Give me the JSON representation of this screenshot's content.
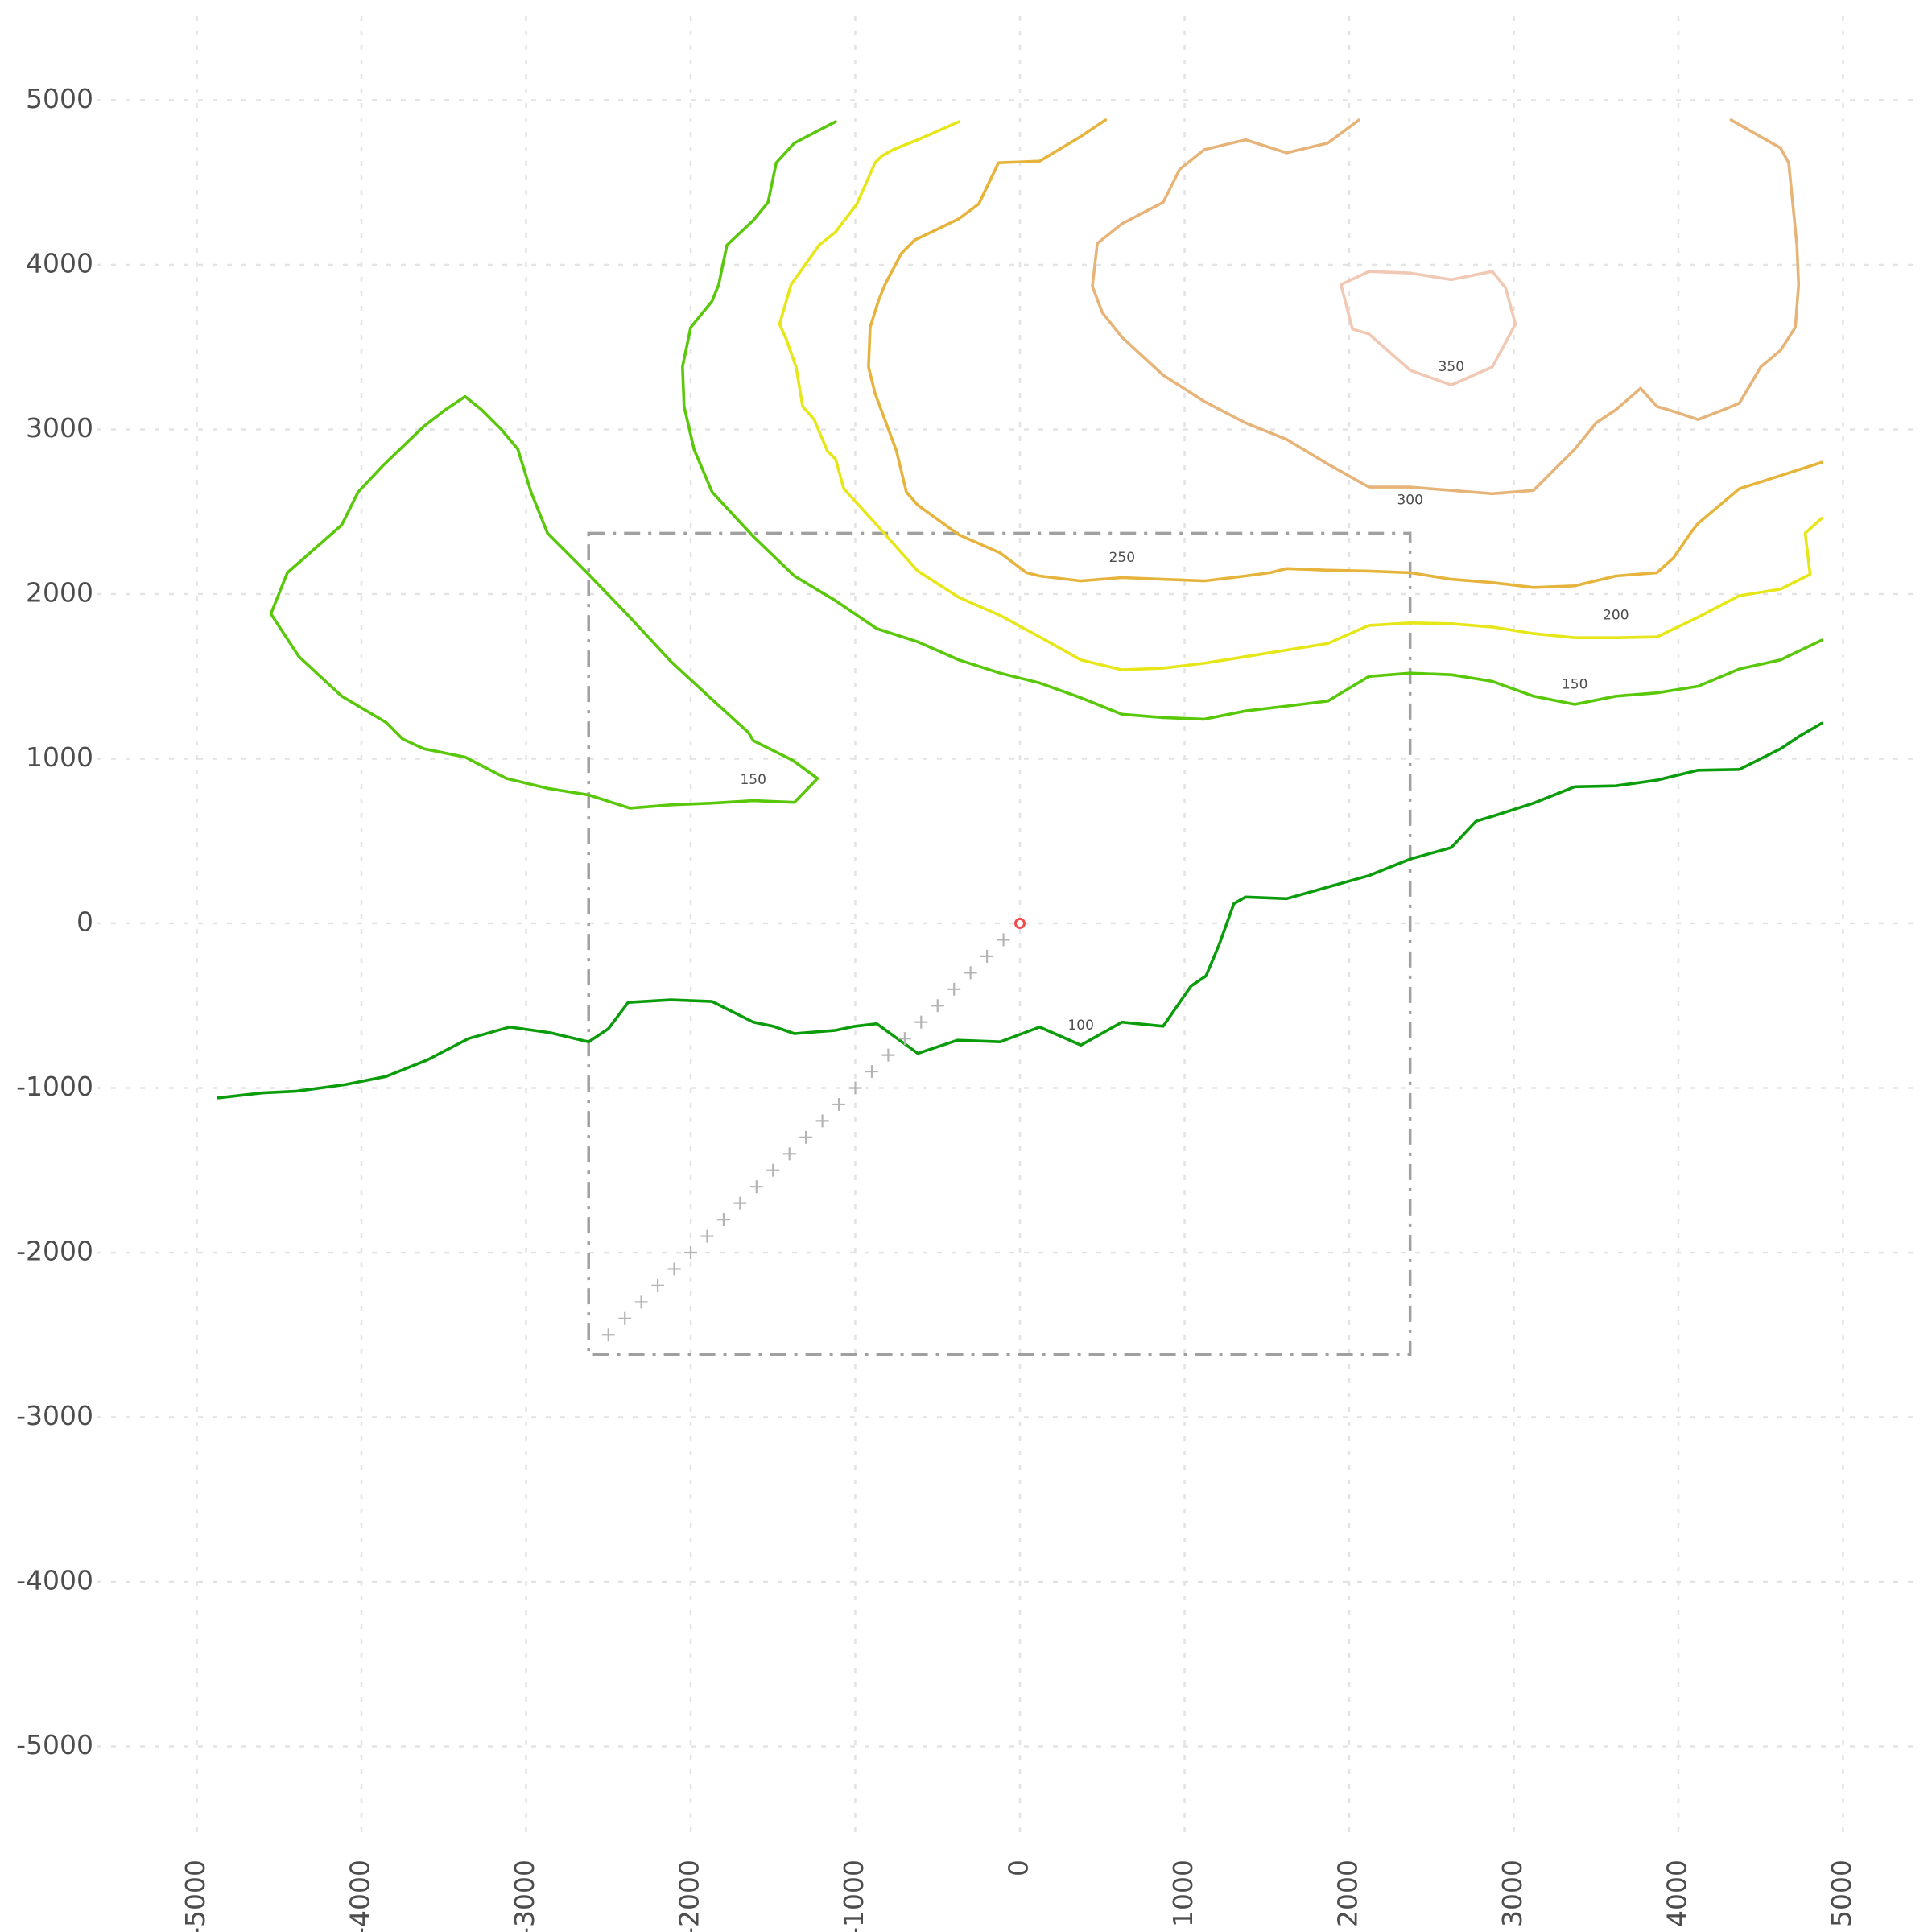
{
  "chart_data": {
    "type": "contour",
    "title": "",
    "xlabel": "",
    "ylabel": "",
    "xlim": [
      -5500,
      5500
    ],
    "ylim": [
      -5600,
      5600
    ],
    "grid": true,
    "x_ticks": [
      -5000,
      -4000,
      -3000,
      -2000,
      -1000,
      0,
      1000,
      2000,
      3000,
      4000,
      5000
    ],
    "x_tick_labels": [
      "-5000",
      "-4000",
      "-3000",
      "-2000",
      "-1000",
      "0",
      "1000",
      "2000",
      "3000",
      "4000",
      "5000"
    ],
    "y_ticks": [
      5000,
      4000,
      3000,
      2000,
      1000,
      0,
      -1000,
      -2000,
      -3000,
      -4000,
      -5000
    ],
    "y_tick_labels": [
      "5000",
      "4000",
      "3000",
      "2000",
      "1000",
      "0",
      "-1000",
      "-2000",
      "-3000",
      "-4000",
      "-5000"
    ],
    "contours": [
      {
        "level": 100,
        "color": "#0a9c0a",
        "points": [
          [
            -4870,
            -1060
          ],
          [
            -4600,
            -1030
          ],
          [
            -4400,
            -1020
          ],
          [
            -4100,
            -980
          ],
          [
            -3850,
            -930
          ],
          [
            -3600,
            -830
          ],
          [
            -3350,
            -700
          ],
          [
            -3100,
            -630
          ],
          [
            -2850,
            -665
          ],
          [
            -2620,
            -720
          ],
          [
            -2500,
            -640
          ],
          [
            -2380,
            -480
          ],
          [
            -2120,
            -465
          ],
          [
            -1870,
            -475
          ],
          [
            -1620,
            -600
          ],
          [
            -1500,
            -625
          ],
          [
            -1370,
            -670
          ],
          [
            -1120,
            -650
          ],
          [
            -1000,
            -625
          ],
          [
            -870,
            -610
          ],
          [
            -620,
            -790
          ],
          [
            -380,
            -710
          ],
          [
            -120,
            -720
          ],
          [
            120,
            -630
          ],
          [
            370,
            -740
          ],
          [
            620,
            -600
          ],
          [
            870,
            -625
          ],
          [
            1040,
            -380
          ],
          [
            1130,
            -320
          ],
          [
            1210,
            -130
          ],
          [
            1300,
            120
          ],
          [
            1370,
            160
          ],
          [
            1620,
            150
          ],
          [
            1870,
            220
          ],
          [
            2120,
            290
          ],
          [
            2370,
            390
          ],
          [
            2620,
            460
          ],
          [
            2770,
            620
          ],
          [
            2870,
            650
          ],
          [
            3120,
            730
          ],
          [
            3370,
            830
          ],
          [
            3620,
            835
          ],
          [
            3870,
            870
          ],
          [
            4120,
            930
          ],
          [
            4370,
            935
          ],
          [
            4620,
            1060
          ],
          [
            4740,
            1140
          ],
          [
            4870,
            1215
          ]
        ]
      },
      {
        "level": 150,
        "color": "#5ac80a",
        "points": [
          [
            4870,
            1720
          ],
          [
            4620,
            1600
          ],
          [
            4370,
            1545
          ],
          [
            4120,
            1440
          ],
          [
            3870,
            1400
          ],
          [
            3620,
            1380
          ],
          [
            3370,
            1330
          ],
          [
            3120,
            1380
          ],
          [
            2870,
            1470
          ],
          [
            2620,
            1510
          ],
          [
            2370,
            1520
          ],
          [
            2120,
            1500
          ],
          [
            1870,
            1350
          ],
          [
            1620,
            1320
          ],
          [
            1370,
            1290
          ],
          [
            1120,
            1240
          ],
          [
            870,
            1250
          ],
          [
            620,
            1270
          ],
          [
            370,
            1370
          ],
          [
            120,
            1460
          ],
          [
            -120,
            1520
          ],
          [
            -370,
            1600
          ],
          [
            -620,
            1710
          ],
          [
            -870,
            1790
          ],
          [
            -1120,
            1960
          ],
          [
            -1370,
            2110
          ],
          [
            -1620,
            2350
          ],
          [
            -1870,
            2620
          ],
          [
            -1980,
            2880
          ],
          [
            -2040,
            3140
          ],
          [
            -2050,
            3380
          ],
          [
            -2000,
            3620
          ],
          [
            -1870,
            3780
          ],
          [
            -1830,
            3880
          ],
          [
            -1780,
            4120
          ],
          [
            -1620,
            4270
          ],
          [
            -1530,
            4380
          ],
          [
            -1480,
            4620
          ],
          [
            -1370,
            4740
          ],
          [
            -1120,
            4870
          ]
        ]
      },
      {
        "level": 150,
        "color": "#5ac80a",
        "points": [
          [
            -1230,
            880
          ],
          [
            -1380,
            990
          ],
          [
            -1620,
            1110
          ],
          [
            -1650,
            1160
          ],
          [
            -1870,
            1360
          ],
          [
            -2120,
            1590
          ],
          [
            -2370,
            1860
          ],
          [
            -2620,
            2120
          ],
          [
            -2870,
            2370
          ],
          [
            -2970,
            2620
          ],
          [
            -3050,
            2880
          ],
          [
            -3150,
            3000
          ],
          [
            -3270,
            3120
          ],
          [
            -3370,
            3200
          ],
          [
            -3490,
            3120
          ],
          [
            -3620,
            3020
          ],
          [
            -3870,
            2780
          ],
          [
            -4020,
            2620
          ],
          [
            -4120,
            2420
          ],
          [
            -4370,
            2200
          ],
          [
            -4450,
            2130
          ],
          [
            -4550,
            1880
          ],
          [
            -4380,
            1620
          ],
          [
            -4120,
            1380
          ],
          [
            -3850,
            1220
          ],
          [
            -3750,
            1120
          ],
          [
            -3620,
            1060
          ],
          [
            -3370,
            1010
          ],
          [
            -3120,
            880
          ],
          [
            -2870,
            820
          ],
          [
            -2620,
            780
          ],
          [
            -2370,
            700
          ],
          [
            -2120,
            720
          ],
          [
            -1870,
            730
          ],
          [
            -1620,
            745
          ],
          [
            -1370,
            735
          ],
          [
            -1230,
            880
          ]
        ]
      },
      {
        "level": 200,
        "color": "#e6e619",
        "points": [
          [
            4870,
            2460
          ],
          [
            4770,
            2370
          ],
          [
            4800,
            2120
          ],
          [
            4620,
            2030
          ],
          [
            4370,
            1990
          ],
          [
            4120,
            1860
          ],
          [
            3870,
            1740
          ],
          [
            3620,
            1735
          ],
          [
            3370,
            1735
          ],
          [
            3120,
            1760
          ],
          [
            2870,
            1800
          ],
          [
            2620,
            1820
          ],
          [
            2370,
            1825
          ],
          [
            2120,
            1810
          ],
          [
            1870,
            1700
          ],
          [
            1620,
            1660
          ],
          [
            1370,
            1620
          ],
          [
            1120,
            1580
          ],
          [
            870,
            1550
          ],
          [
            620,
            1540
          ],
          [
            370,
            1600
          ],
          [
            120,
            1740
          ],
          [
            -120,
            1870
          ],
          [
            -370,
            1980
          ],
          [
            -620,
            2140
          ],
          [
            -870,
            2420
          ],
          [
            -1070,
            2640
          ],
          [
            -1120,
            2820
          ],
          [
            -1170,
            2870
          ],
          [
            -1250,
            3060
          ],
          [
            -1320,
            3140
          ],
          [
            -1360,
            3380
          ],
          [
            -1420,
            3550
          ],
          [
            -1460,
            3640
          ],
          [
            -1390,
            3880
          ],
          [
            -1220,
            4120
          ],
          [
            -1120,
            4200
          ],
          [
            -990,
            4370
          ],
          [
            -880,
            4620
          ],
          [
            -840,
            4660
          ],
          [
            -770,
            4700
          ],
          [
            -620,
            4760
          ],
          [
            -370,
            4870
          ]
        ]
      },
      {
        "level": 250,
        "color": "#e6b43c",
        "points": [
          [
            4870,
            2800
          ],
          [
            4620,
            2720
          ],
          [
            4370,
            2640
          ],
          [
            4120,
            2430
          ],
          [
            4080,
            2380
          ],
          [
            3970,
            2220
          ],
          [
            3870,
            2130
          ],
          [
            3620,
            2110
          ],
          [
            3370,
            2050
          ],
          [
            3120,
            2040
          ],
          [
            2870,
            2070
          ],
          [
            2620,
            2090
          ],
          [
            2370,
            2130
          ],
          [
            2120,
            2140
          ],
          [
            1870,
            2145
          ],
          [
            1620,
            2155
          ],
          [
            1520,
            2130
          ],
          [
            1370,
            2110
          ],
          [
            1120,
            2080
          ],
          [
            870,
            2090
          ],
          [
            620,
            2100
          ],
          [
            370,
            2080
          ],
          [
            120,
            2110
          ],
          [
            40,
            2130
          ],
          [
            -120,
            2250
          ],
          [
            -370,
            2360
          ],
          [
            -620,
            2540
          ],
          [
            -690,
            2620
          ],
          [
            -750,
            2870
          ],
          [
            -880,
            3220
          ],
          [
            -920,
            3380
          ],
          [
            -910,
            3620
          ],
          [
            -860,
            3780
          ],
          [
            -820,
            3880
          ],
          [
            -720,
            4070
          ],
          [
            -640,
            4150
          ],
          [
            -370,
            4280
          ],
          [
            -250,
            4370
          ],
          [
            -130,
            4620
          ],
          [
            120,
            4630
          ],
          [
            370,
            4780
          ],
          [
            520,
            4880
          ]
        ]
      },
      {
        "level": 300,
        "color": "#e6b478",
        "points": [
          [
            4320,
            4880
          ],
          [
            4620,
            4710
          ],
          [
            4670,
            4620
          ],
          [
            4720,
            4120
          ],
          [
            4730,
            3880
          ],
          [
            4710,
            3620
          ],
          [
            4620,
            3480
          ],
          [
            4500,
            3380
          ],
          [
            4370,
            3160
          ],
          [
            4300,
            3130
          ],
          [
            4120,
            3060
          ],
          [
            3970,
            3110
          ],
          [
            3870,
            3140
          ],
          [
            3770,
            3250
          ],
          [
            3620,
            3120
          ],
          [
            3500,
            3040
          ],
          [
            3370,
            2880
          ],
          [
            3300,
            2810
          ],
          [
            3120,
            2630
          ],
          [
            2870,
            2610
          ],
          [
            2620,
            2630
          ],
          [
            2370,
            2650
          ],
          [
            2120,
            2650
          ],
          [
            1870,
            2790
          ],
          [
            1620,
            2940
          ],
          [
            1370,
            3040
          ],
          [
            1120,
            3170
          ],
          [
            870,
            3330
          ],
          [
            620,
            3560
          ],
          [
            500,
            3710
          ],
          [
            440,
            3870
          ],
          [
            470,
            4130
          ],
          [
            620,
            4250
          ],
          [
            870,
            4380
          ],
          [
            970,
            4580
          ],
          [
            1120,
            4700
          ],
          [
            1370,
            4760
          ],
          [
            1620,
            4680
          ],
          [
            1870,
            4740
          ],
          [
            2060,
            4880
          ]
        ]
      },
      {
        "level": 350,
        "color": "#f0c8b4",
        "points": [
          [
            1950,
            3880
          ],
          [
            2120,
            3960
          ],
          [
            2370,
            3950
          ],
          [
            2620,
            3910
          ],
          [
            2870,
            3960
          ],
          [
            2950,
            3860
          ],
          [
            3010,
            3640
          ],
          [
            2870,
            3380
          ],
          [
            2620,
            3270
          ],
          [
            2370,
            3360
          ],
          [
            2120,
            3580
          ],
          [
            2020,
            3610
          ],
          [
            1950,
            3880
          ]
        ]
      }
    ],
    "contour_labels": [
      {
        "text": "100",
        "x": 370,
        "y": -620
      },
      {
        "text": "150",
        "x": -1620,
        "y": 870
      },
      {
        "text": "150",
        "x": 3370,
        "y": 1450
      },
      {
        "text": "200",
        "x": 3620,
        "y": 1870
      },
      {
        "text": "250",
        "x": 620,
        "y": 2220
      },
      {
        "text": "300",
        "x": 2370,
        "y": 2570
      },
      {
        "text": "350",
        "x": 2620,
        "y": 3380
      }
    ],
    "frame": {
      "xmin": -2620,
      "xmax": 2370,
      "ymin": -2620,
      "ymax": 2370,
      "color": "#a0a0a0",
      "style": "dash-dot"
    },
    "path_points": {
      "marker": "+",
      "color": "#b4b4b4",
      "start": [
        -2500,
        -2500
      ],
      "end": [
        -100,
        -100
      ],
      "step": 100
    },
    "origin_point": {
      "x": 0,
      "y": 0,
      "marker": "circle",
      "color": "#f04a4a"
    }
  }
}
